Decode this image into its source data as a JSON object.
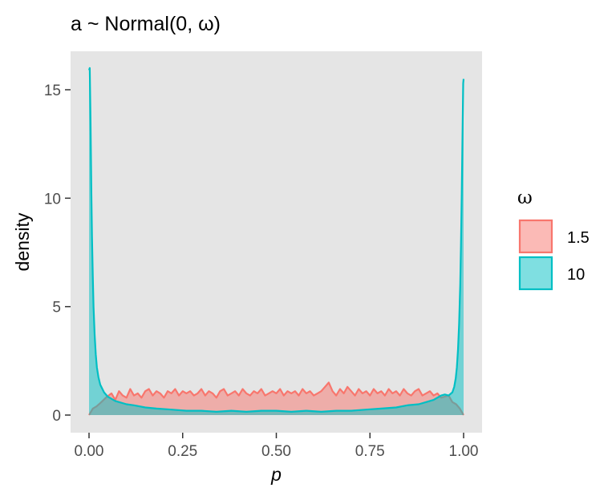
{
  "chart_data": {
    "type": "area",
    "title": "a ~ Normal(0, ω)",
    "xlabel": "p",
    "ylabel": "density",
    "xlim": [
      0,
      1
    ],
    "ylim": [
      0,
      16
    ],
    "x_ticks": [
      "0.00",
      "0.25",
      "0.50",
      "0.75",
      "1.00"
    ],
    "y_ticks": [
      "0",
      "5",
      "10",
      "15"
    ],
    "grid": false,
    "panel_background": "#e5e5e5",
    "legend": {
      "title": "ω",
      "placement": "right",
      "entries": [
        "1.5",
        "10"
      ]
    },
    "series": [
      {
        "name": "1.5",
        "color": "#f8766d",
        "x": [
          0.0,
          0.01,
          0.02,
          0.03,
          0.045,
          0.06,
          0.07,
          0.08,
          0.09,
          0.1,
          0.11,
          0.12,
          0.13,
          0.14,
          0.15,
          0.16,
          0.17,
          0.18,
          0.19,
          0.2,
          0.21,
          0.22,
          0.23,
          0.24,
          0.25,
          0.26,
          0.27,
          0.28,
          0.29,
          0.3,
          0.31,
          0.32,
          0.33,
          0.34,
          0.35,
          0.36,
          0.37,
          0.38,
          0.39,
          0.4,
          0.41,
          0.42,
          0.43,
          0.44,
          0.45,
          0.46,
          0.47,
          0.48,
          0.49,
          0.5,
          0.51,
          0.52,
          0.53,
          0.54,
          0.55,
          0.56,
          0.57,
          0.58,
          0.59,
          0.6,
          0.61,
          0.62,
          0.63,
          0.64,
          0.65,
          0.66,
          0.67,
          0.68,
          0.69,
          0.7,
          0.71,
          0.72,
          0.73,
          0.74,
          0.75,
          0.76,
          0.77,
          0.78,
          0.79,
          0.8,
          0.81,
          0.82,
          0.83,
          0.84,
          0.85,
          0.86,
          0.87,
          0.88,
          0.89,
          0.9,
          0.91,
          0.92,
          0.93,
          0.94,
          0.96,
          0.97,
          0.98,
          0.99,
          1.0
        ],
        "values": [
          0.0,
          0.3,
          0.4,
          0.55,
          0.8,
          1.0,
          0.7,
          1.1,
          0.9,
          0.8,
          1.2,
          0.9,
          1.0,
          0.8,
          1.1,
          1.2,
          0.9,
          1.1,
          1.0,
          0.8,
          1.1,
          1.0,
          1.2,
          0.9,
          1.1,
          1.0,
          1.1,
          0.9,
          1.0,
          1.2,
          0.9,
          1.1,
          1.0,
          0.8,
          1.1,
          1.2,
          0.9,
          1.0,
          1.1,
          0.9,
          1.2,
          1.0,
          0.9,
          1.1,
          1.0,
          1.2,
          0.9,
          1.0,
          1.1,
          1.0,
          1.2,
          0.9,
          1.1,
          1.0,
          1.1,
          0.9,
          1.2,
          1.0,
          1.1,
          0.9,
          1.0,
          1.1,
          1.3,
          1.5,
          1.1,
          0.9,
          1.2,
          1.0,
          1.3,
          1.1,
          0.9,
          1.2,
          1.0,
          1.1,
          0.9,
          1.2,
          1.0,
          1.1,
          0.9,
          1.2,
          1.0,
          1.1,
          0.9,
          1.2,
          1.0,
          0.9,
          1.1,
          1.2,
          0.9,
          1.0,
          1.1,
          0.9,
          1.0,
          0.8,
          0.9,
          0.6,
          0.5,
          0.3,
          0.0
        ]
      },
      {
        "name": "10",
        "color": "#00bfc4",
        "x": [
          0.0,
          0.002,
          0.004,
          0.006,
          0.008,
          0.01,
          0.012,
          0.015,
          0.018,
          0.021,
          0.025,
          0.03,
          0.04,
          0.05,
          0.06,
          0.07,
          0.08,
          0.1,
          0.12,
          0.15,
          0.18,
          0.22,
          0.26,
          0.3,
          0.34,
          0.38,
          0.42,
          0.46,
          0.5,
          0.54,
          0.58,
          0.62,
          0.66,
          0.7,
          0.74,
          0.78,
          0.82,
          0.85,
          0.88,
          0.9,
          0.92,
          0.93,
          0.94,
          0.95,
          0.96,
          0.97,
          0.975,
          0.979,
          0.982,
          0.985,
          0.988,
          0.991,
          0.993,
          0.995,
          0.997,
          0.999,
          1.0
        ],
        "values": [
          15.9,
          16.0,
          13.5,
          10.5,
          8.2,
          6.4,
          5.0,
          3.7,
          2.8,
          2.2,
          1.75,
          1.4,
          1.05,
          0.85,
          0.75,
          0.65,
          0.6,
          0.5,
          0.45,
          0.35,
          0.3,
          0.25,
          0.2,
          0.2,
          0.15,
          0.2,
          0.15,
          0.2,
          0.2,
          0.15,
          0.2,
          0.15,
          0.2,
          0.2,
          0.25,
          0.3,
          0.35,
          0.45,
          0.5,
          0.6,
          0.7,
          0.8,
          0.9,
          0.95,
          0.9,
          1.05,
          1.3,
          1.7,
          2.2,
          3.0,
          4.2,
          6.0,
          7.8,
          10.2,
          12.8,
          15.3,
          15.5
        ]
      }
    ]
  }
}
